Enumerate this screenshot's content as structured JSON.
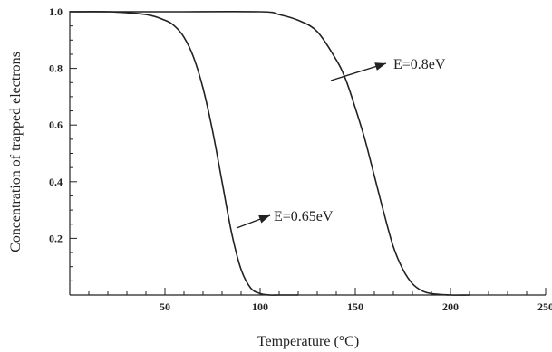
{
  "chart_data": {
    "type": "line",
    "xlabel": "Temperature (°C)",
    "ylabel": "Concentration of trapped electrons",
    "xlim": [
      0,
      250
    ],
    "ylim": [
      0,
      1.0
    ],
    "x_ticks": [
      50,
      100,
      150,
      200,
      250
    ],
    "y_ticks": [
      0.2,
      0.4,
      0.6,
      0.8,
      1.0
    ],
    "x_tick_labels": [
      "50",
      "100",
      "150",
      "200",
      "250"
    ],
    "y_tick_labels": [
      "0.2",
      "0.4",
      "0.6",
      "0.8",
      "1.0"
    ],
    "grid": false,
    "series": [
      {
        "name": "E=0.65eV",
        "x": [
          0,
          20,
          40,
          50,
          55,
          60,
          65,
          70,
          75,
          80,
          85,
          90,
          95,
          100,
          105,
          110,
          120
        ],
        "y": [
          1.0,
          1.0,
          0.99,
          0.97,
          0.95,
          0.91,
          0.84,
          0.73,
          0.58,
          0.4,
          0.22,
          0.09,
          0.025,
          0.005,
          0.0,
          0.0,
          0.0
        ]
      },
      {
        "name": "E=0.8eV",
        "x": [
          0,
          50,
          100,
          110,
          120,
          130,
          140,
          145,
          150,
          155,
          160,
          165,
          170,
          175,
          180,
          185,
          190,
          200,
          210
        ],
        "y": [
          1.0,
          1.0,
          1.0,
          0.99,
          0.97,
          0.93,
          0.83,
          0.76,
          0.66,
          0.55,
          0.42,
          0.29,
          0.17,
          0.09,
          0.04,
          0.015,
          0.005,
          0.0,
          0.0
        ]
      }
    ],
    "annotations": [
      {
        "text": "E=0.8eV",
        "series": "E=0.8eV"
      },
      {
        "text": "E=0.65eV",
        "series": "E=0.65eV"
      }
    ]
  }
}
